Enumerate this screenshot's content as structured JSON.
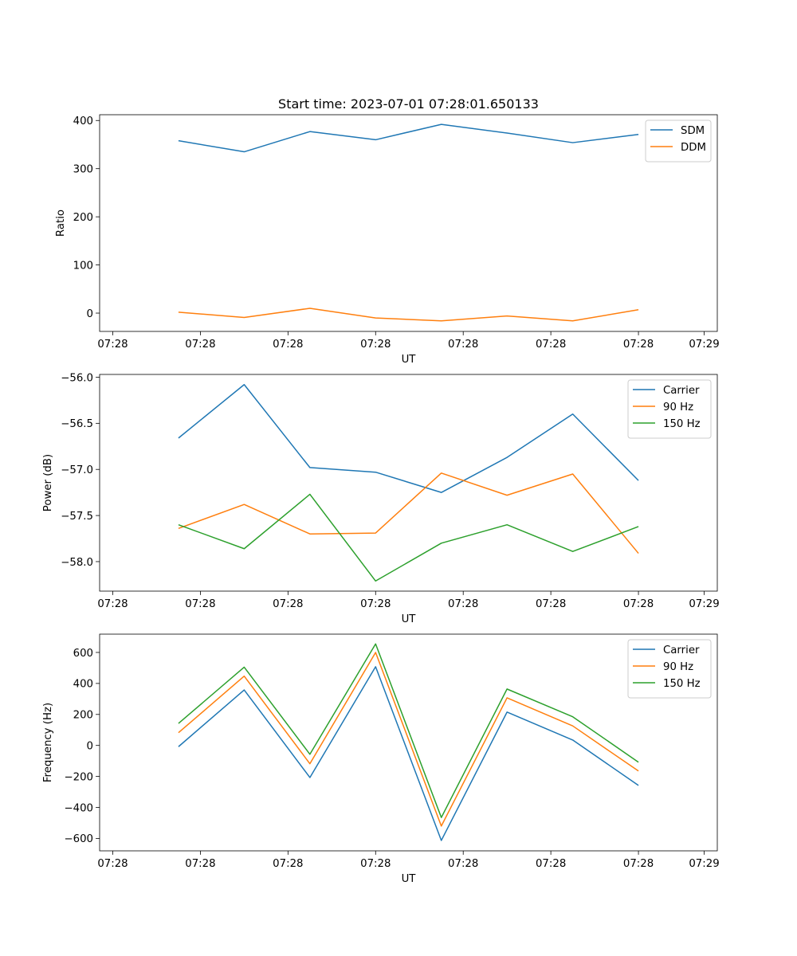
{
  "chart_data": {
    "title": "Start time: 2023-07-01 07:28:01.650133",
    "x_tick_labels": [
      "07:28",
      "07:28",
      "07:28",
      "07:28",
      "07:28",
      "07:28",
      "07:28"
    ],
    "x_tick_last_label": "07:29",
    "x_positions": [
      1,
      2,
      3,
      4,
      5,
      6,
      7,
      8
    ],
    "x_range": [
      -0.2,
      9.2
    ],
    "panels": [
      {
        "type": "line",
        "xlabel": "UT",
        "ylabel": "Ratio",
        "ylim": [
          -38,
          412
        ],
        "yticks": [
          0,
          100,
          200,
          300,
          400
        ],
        "ytick_labels": [
          "0",
          "100",
          "200",
          "300",
          "400"
        ],
        "legend_loc": "top-right",
        "series": [
          {
            "name": "SDM",
            "color": "#1f77b4",
            "values": [
              358,
              335,
              377,
              360,
              392,
              374,
              354,
              371
            ]
          },
          {
            "name": "DDM",
            "color": "#ff7f0e",
            "values": [
              2,
              -9,
              10,
              -10,
              -16,
              -6,
              -16,
              7
            ]
          }
        ]
      },
      {
        "type": "line",
        "xlabel": "UT",
        "ylabel": "Power (dB)",
        "ylim": [
          -58.32,
          -55.97
        ],
        "yticks": [
          -58.0,
          -57.5,
          -57.0,
          -56.5,
          -56.0
        ],
        "ytick_labels": [
          "−58.0",
          "−57.5",
          "−57.0",
          "−56.5",
          "−56.0"
        ],
        "legend_loc": "top-right",
        "series": [
          {
            "name": "Carrier",
            "color": "#1f77b4",
            "values": [
              -56.66,
              -56.08,
              -56.98,
              -57.03,
              -57.25,
              -56.87,
              -56.4,
              -57.12
            ]
          },
          {
            "name": "90 Hz",
            "color": "#ff7f0e",
            "values": [
              -57.64,
              -57.38,
              -57.7,
              -57.69,
              -57.04,
              -57.28,
              -57.05,
              -57.91
            ]
          },
          {
            "name": "150 Hz",
            "color": "#2ca02c",
            "values": [
              -57.6,
              -57.86,
              -57.27,
              -58.21,
              -57.8,
              -57.6,
              -57.89,
              -57.62
            ]
          }
        ]
      },
      {
        "type": "line",
        "xlabel": "UT",
        "ylabel": "Frequency (Hz)",
        "ylim": [
          -680,
          718
        ],
        "yticks": [
          -600,
          -400,
          -200,
          0,
          200,
          400,
          600
        ],
        "ytick_labels": [
          "−600",
          "−400",
          "−200",
          "0",
          "200",
          "400",
          "600"
        ],
        "legend_loc": "top-right",
        "series": [
          {
            "name": "Carrier",
            "color": "#1f77b4",
            "values": [
              -8,
              358,
              -207,
              508,
              -613,
              215,
              35,
              -258
            ]
          },
          {
            "name": "90 Hz",
            "color": "#ff7f0e",
            "values": [
              82,
              447,
              -118,
              600,
              -520,
              307,
              126,
              -165
            ]
          },
          {
            "name": "150 Hz",
            "color": "#2ca02c",
            "values": [
              142,
              505,
              -57,
              655,
              -465,
              364,
              185,
              -108
            ]
          }
        ]
      }
    ]
  }
}
